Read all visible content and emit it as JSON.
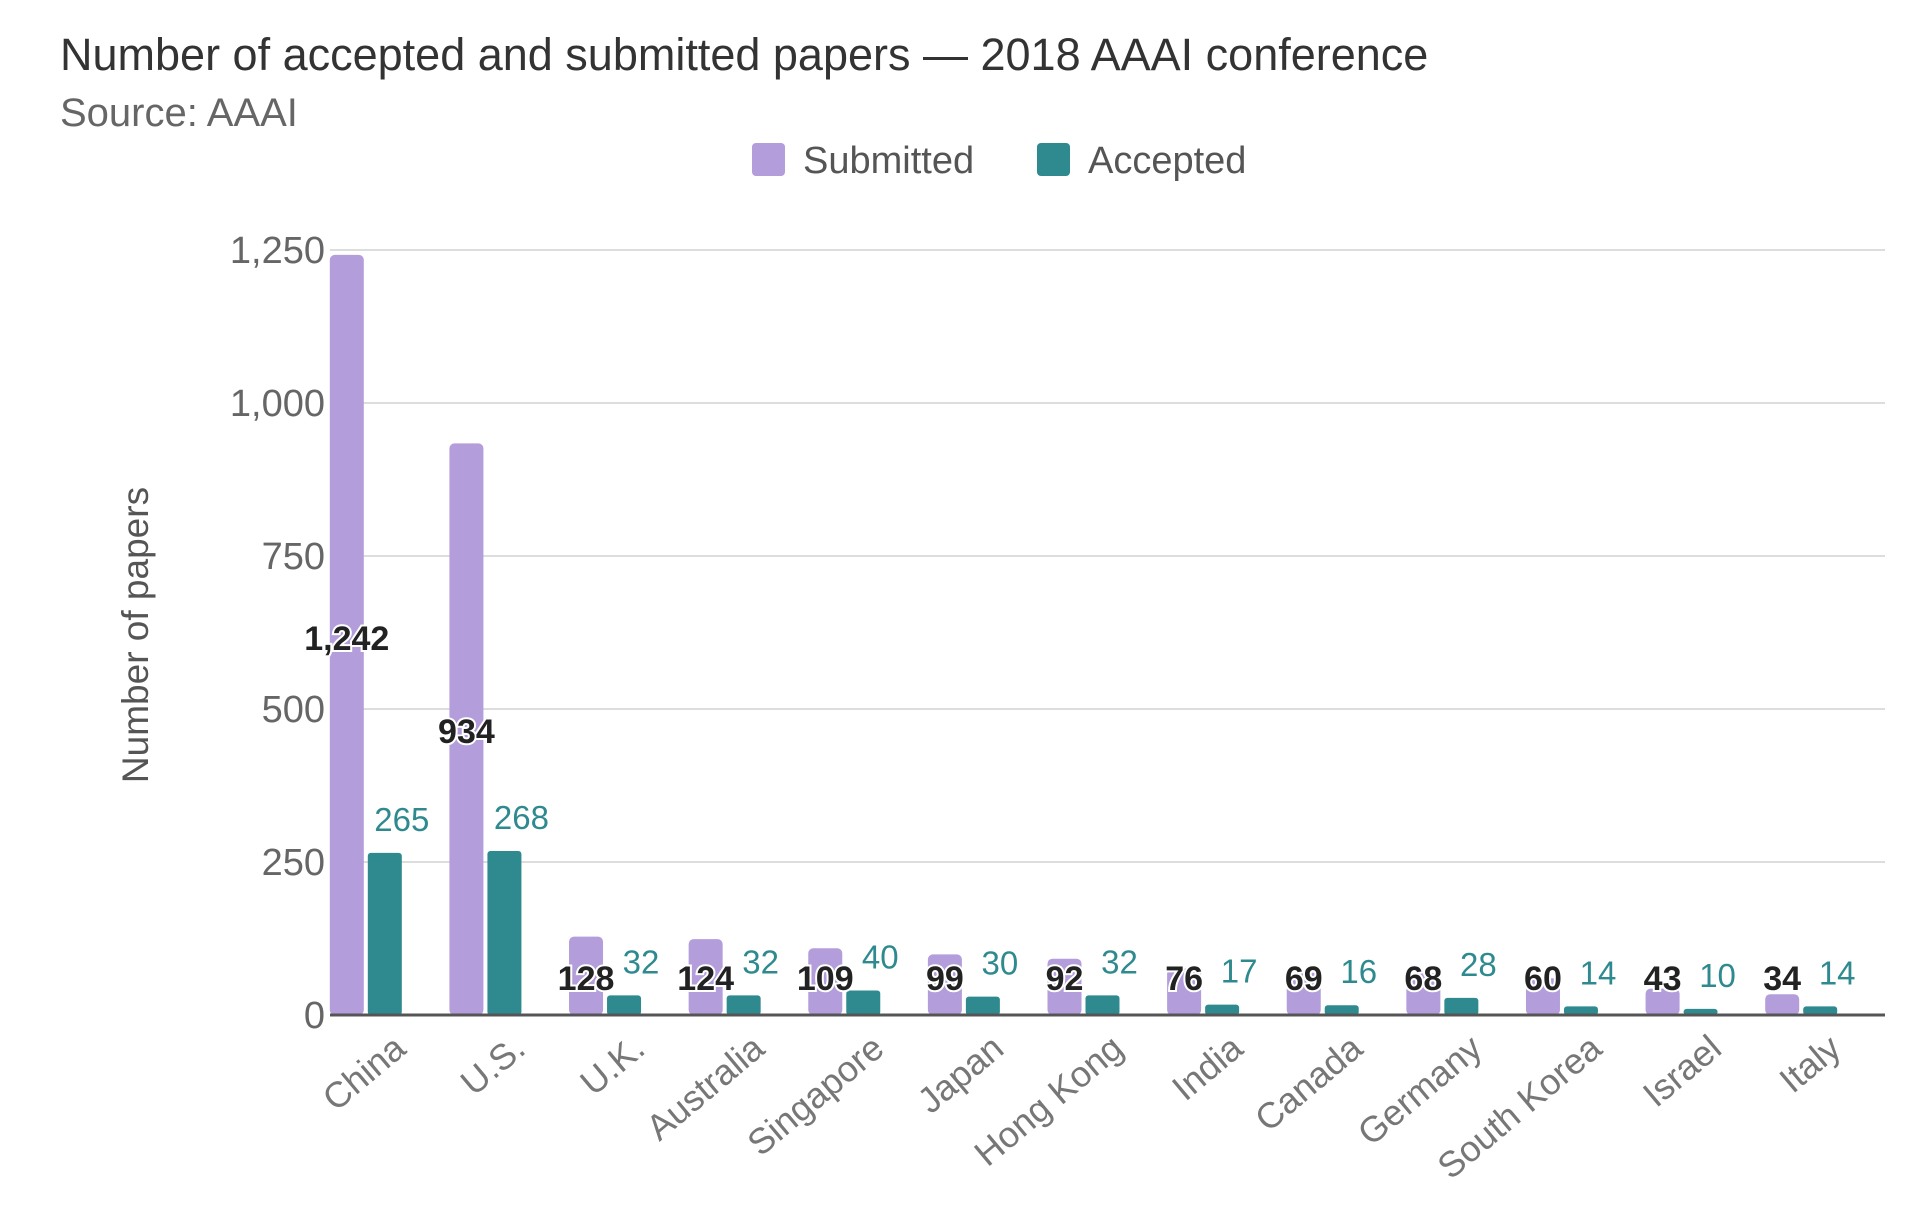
{
  "chart_data": {
    "type": "bar",
    "title": "Number of accepted and submitted papers — 2018 AAAI conference",
    "subtitle": "Source: AAAI",
    "ylabel": "Number of papers",
    "xlabel": "",
    "ylim": [
      0,
      1250
    ],
    "yticks": [
      0,
      250,
      500,
      750,
      1000,
      1250
    ],
    "ytick_labels": [
      "0",
      "250",
      "500",
      "750",
      "1,000",
      "1,250"
    ],
    "grid": true,
    "legend_position": "top-center",
    "categories": [
      "China",
      "U.S.",
      "U.K.",
      "Australia",
      "Singapore",
      "Japan",
      "Hong Kong",
      "India",
      "Canada",
      "Germany",
      "South Korea",
      "Israel",
      "Italy"
    ],
    "series": [
      {
        "name": "Submitted",
        "color": "#b39ddb",
        "values": [
          1242,
          934,
          128,
          124,
          109,
          99,
          92,
          76,
          69,
          68,
          60,
          43,
          34
        ],
        "labels": [
          "1,242",
          "934",
          "128",
          "124",
          "109",
          "99",
          "92",
          "76",
          "69",
          "68",
          "60",
          "43",
          "34"
        ]
      },
      {
        "name": "Accepted",
        "color": "#2e8a8f",
        "values": [
          265,
          268,
          32,
          32,
          40,
          30,
          32,
          17,
          16,
          28,
          14,
          10,
          14
        ],
        "labels": [
          "265",
          "268",
          "32",
          "32",
          "40",
          "30",
          "32",
          "17",
          "16",
          "28",
          "14",
          "10",
          "14"
        ]
      }
    ]
  }
}
